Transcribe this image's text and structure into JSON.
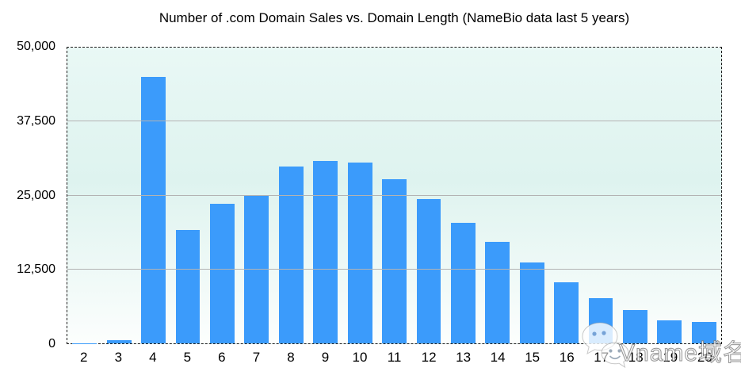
{
  "chart_data": {
    "type": "bar",
    "title": "Number of .com Domain Sales vs. Domain Length (NameBio data last 5 years)",
    "xlabel": "",
    "ylabel": "",
    "categories": [
      "2",
      "3",
      "4",
      "5",
      "6",
      "7",
      "8",
      "9",
      "10",
      "11",
      "12",
      "13",
      "14",
      "15",
      "16",
      "17",
      "18",
      "19",
      "20"
    ],
    "values": [
      50,
      500,
      45100,
      19200,
      23600,
      24900,
      29900,
      30800,
      30500,
      27800,
      24400,
      20400,
      17100,
      13700,
      10300,
      7700,
      5600,
      3900,
      3600
    ],
    "ylim": [
      0,
      50000
    ],
    "yticks": [
      {
        "value": 0,
        "label": "0"
      },
      {
        "value": 12500,
        "label": "12,500"
      },
      {
        "value": 25000,
        "label": "25,000"
      },
      {
        "value": 37500,
        "label": "37,500"
      },
      {
        "value": 50000,
        "label": "50,000"
      }
    ],
    "grid": true,
    "legend": false,
    "colors": {
      "bar": "#3b9bfb",
      "plot_bg_top": "#e9f8f5",
      "plot_bg_bottom": "#fcfefd",
      "gridline": "#b3b3b3",
      "border": "#1a1a1a",
      "text": "#000000"
    }
  },
  "watermark": {
    "icon": "wechat-icon",
    "text": "Vname域名"
  }
}
